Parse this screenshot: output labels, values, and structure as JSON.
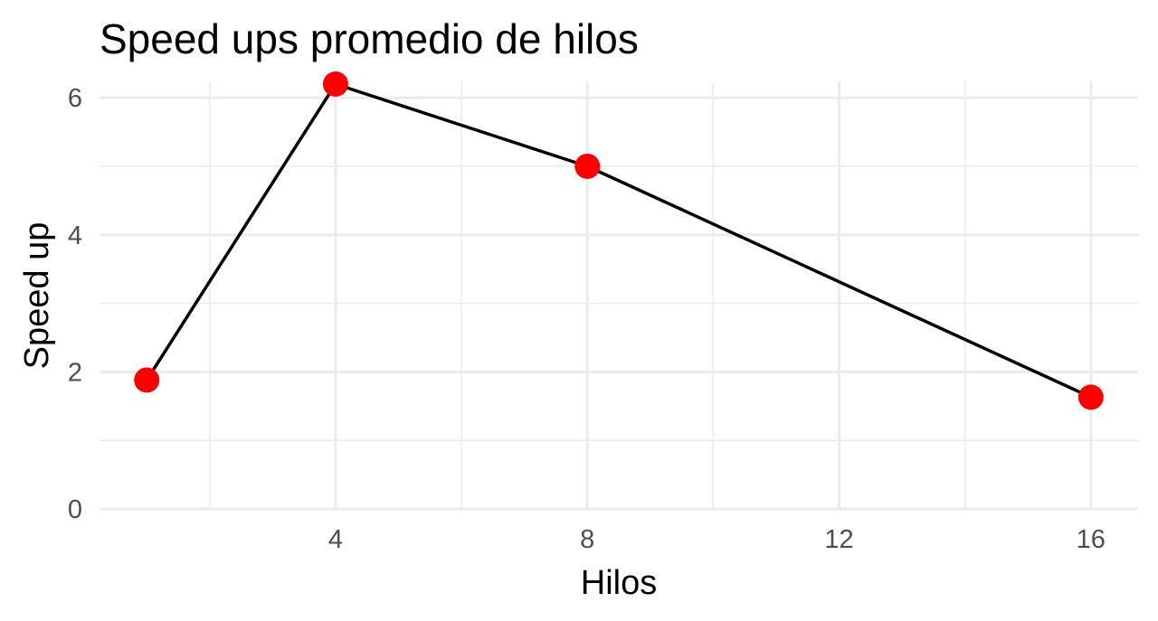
{
  "chart_data": {
    "type": "line",
    "title": "Speed ups promedio de hilos",
    "xlabel": "Hilos",
    "ylabel": "Speed up",
    "x": [
      1,
      4,
      8,
      16
    ],
    "series": [
      {
        "values": [
          1.88,
          6.2,
          5.0,
          1.63
        ]
      }
    ],
    "xlim": [
      0.25,
      16.75
    ],
    "ylim": [
      0,
      6.2
    ],
    "x_ticks": [
      4,
      8,
      12,
      16
    ],
    "y_ticks": [
      0,
      2,
      4,
      6
    ],
    "x_minor_ticks": [
      2,
      6,
      10,
      14
    ],
    "y_minor_ticks": [
      1,
      3,
      5
    ],
    "grid": true,
    "legend": "none",
    "line_color": "#000000",
    "point_color": "#ff0000",
    "grid_color": "#ebebeb"
  }
}
